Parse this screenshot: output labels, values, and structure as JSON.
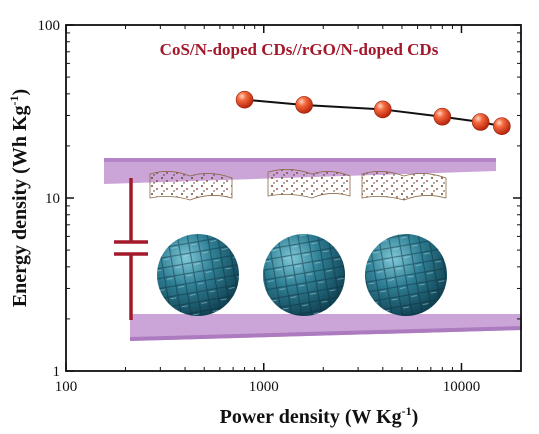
{
  "chart_data": {
    "type": "scatter",
    "title": "",
    "annotation": "CoS/N-doped CDs//rGO/N-doped CDs",
    "xlabel": "Power density (W Kg",
    "xlabel_sup": "-1",
    "xlabel_end": ")",
    "ylabel": "Energy density (Wh Kg",
    "ylabel_sup": "-1",
    "ylabel_end": ")",
    "x_scale": "log",
    "y_scale": "log",
    "xlim": [
      100,
      20000
    ],
    "ylim": [
      1,
      100
    ],
    "x_ticks": [
      100,
      1000,
      10000
    ],
    "x_tick_labels": [
      "100",
      "1000",
      "10000"
    ],
    "y_ticks": [
      1,
      10,
      100
    ],
    "y_tick_labels": [
      "1",
      "10",
      "100"
    ],
    "grid": false,
    "legend": "none",
    "series": [
      {
        "x": [
          800,
          1600,
          4000,
          8000,
          12500,
          16000
        ],
        "y": [
          37,
          34.5,
          32.5,
          29.5,
          27.5,
          26
        ],
        "marker_color": "#e8452a",
        "line_color": "#111111"
      }
    ],
    "colors": {
      "electrode_plate": "#c9a0d6",
      "sphere": "#2f7f95",
      "circuit": "#a3182a"
    }
  }
}
